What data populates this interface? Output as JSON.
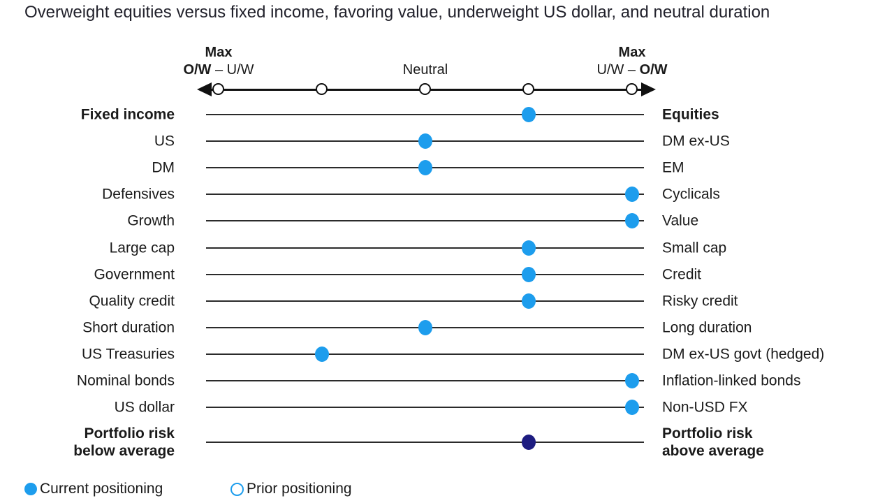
{
  "title": "Overweight equities versus fixed income, favoring value, underweight US dollar, and neutral duration",
  "axis": {
    "left": {
      "line1": "Max",
      "line2_bold": "O/W",
      "line2_rest": " – U/W"
    },
    "center": "Neutral",
    "right": {
      "line1": "Max",
      "line2_rest": "U/W – ",
      "line2_bold": "O/W"
    }
  },
  "legend": {
    "current": {
      "label": "Current positioning",
      "icon": "filled-circle"
    },
    "prior": {
      "label": "Prior positioning",
      "icon": "open-circle"
    }
  },
  "colors": {
    "current_dot": "#1d9ded",
    "prior_outline": "#1d9ded",
    "risk_dot": "#1d1c80",
    "line": "#2b2b2b",
    "text": "#1a1a1a"
  },
  "chart_data": {
    "type": "scatter",
    "title": "Overweight equities versus fixed income, favoring value, underweight US dollar, and neutral duration",
    "scale": {
      "min": -2,
      "max": 2,
      "neutral": 0,
      "tick_values": [
        -2,
        -1,
        0,
        1,
        2
      ],
      "left_end_label": "Max O/W – U/W",
      "center_label": "Neutral",
      "right_end_label": "Max U/W – O/W"
    },
    "legend_entries": [
      "Current positioning",
      "Prior positioning"
    ],
    "rows": [
      {
        "left": "Fixed income",
        "right": "Equities",
        "value": 1,
        "series": "current",
        "bold": true
      },
      {
        "left": "US",
        "right": "DM ex-US",
        "value": 0,
        "series": "current",
        "bold": false
      },
      {
        "left": "DM",
        "right": "EM",
        "value": 0,
        "series": "current",
        "bold": false
      },
      {
        "left": "Defensives",
        "right": "Cyclicals",
        "value": 2,
        "series": "current",
        "bold": false
      },
      {
        "left": "Growth",
        "right": "Value",
        "value": 2,
        "series": "current",
        "bold": false
      },
      {
        "left": "Large cap",
        "right": "Small cap",
        "value": 1,
        "series": "current",
        "bold": false
      },
      {
        "left": "Government",
        "right": "Credit",
        "value": 1,
        "series": "current",
        "bold": false
      },
      {
        "left": "Quality credit",
        "right": "Risky credit",
        "value": 1,
        "series": "current",
        "bold": false
      },
      {
        "left": "Short duration",
        "right": "Long duration",
        "value": 0,
        "series": "current",
        "bold": false
      },
      {
        "left": "US Treasuries",
        "right": "DM ex-US govt (hedged)",
        "value": -1,
        "series": "current",
        "bold": false
      },
      {
        "left": "Nominal bonds",
        "right": "Inflation-linked bonds",
        "value": 2,
        "series": "current",
        "bold": false
      },
      {
        "left": "US dollar",
        "right": "Non-USD FX",
        "value": 2,
        "series": "current",
        "bold": false
      },
      {
        "left": "Portfolio risk\nbelow average",
        "right": "Portfolio risk\nabove average",
        "value": 1,
        "series": "risk",
        "bold": true
      }
    ]
  }
}
